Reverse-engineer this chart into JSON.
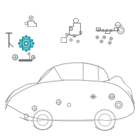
{
  "bg_color": "#ffffff",
  "car_color": "#999999",
  "parts_color": "#777777",
  "hi_color": "#3ab5c5",
  "hi_dark": "#2090a0",
  "fig_width": 2.0,
  "fig_height": 2.0,
  "dpi": 100
}
